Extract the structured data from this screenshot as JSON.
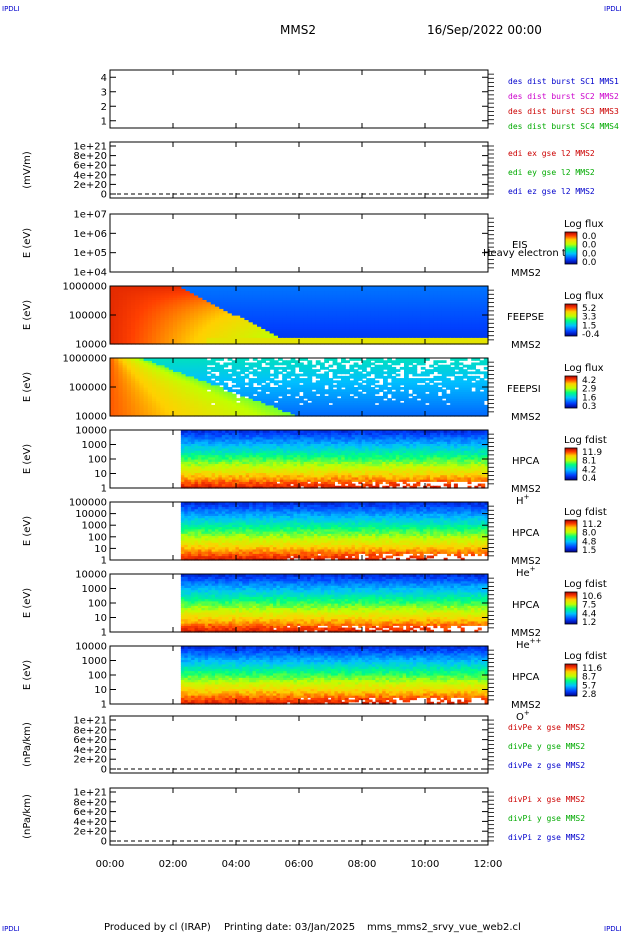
{
  "header": {
    "corner_left_top": "IPDLI",
    "corner_right_top": "IPDLI",
    "corner_left_bottom": "IPDLI",
    "corner_right_bottom": "IPDLI",
    "spacecraft": "MMS2",
    "date": "16/Sep/2022 00:00"
  },
  "footer": {
    "produced": "Produced by cl (IRAP)",
    "printing": "Printing date: 03/Jan/2025",
    "file": "mms_mms2_srvy_vue_web2.cl"
  },
  "colors": {
    "blue": "#0000cc",
    "magenta": "#cc00cc",
    "red": "#cc0000",
    "green": "#00aa00"
  },
  "chart_data": [
    {
      "id": "burst",
      "type": "line",
      "ylabel": "",
      "ylim": [
        0.5,
        4.5
      ],
      "yticks": [
        "1",
        "2",
        "3",
        "4"
      ],
      "legend": [
        "des dist burst SC1 MMS1",
        "des dist burst SC2 MMS2",
        "des dist burst SC3 MMS3",
        "des dist burst SC4 MMS4"
      ],
      "legend_colors": [
        "#0000cc",
        "#cc00cc",
        "#cc0000",
        "#00aa00"
      ]
    },
    {
      "id": "edi",
      "type": "line",
      "ylabel": "(mV/m)",
      "yticks": [
        "0",
        "2e+20",
        "4e+20",
        "6e+20",
        "8e+20",
        "1e+21"
      ],
      "legend": [
        "edi ex gse l2 MMS2",
        "edi ey gse l2 MMS2",
        "edi ez gse l2 MMS2"
      ],
      "legend_colors": [
        "#cc0000",
        "#00aa00",
        "#0000cc"
      ]
    },
    {
      "id": "eis",
      "type": "heatmap",
      "ylabel": "E (eV)",
      "yscale": "log",
      "yticks": [
        "1e+04",
        "1e+05",
        "1e+06",
        "1e+07"
      ],
      "labels": [
        "EIS",
        "MMS2"
      ],
      "overlay": "Heavy electron to",
      "colorbar_title": "Log flux",
      "colorbar_ticks": [
        "0.0",
        "0.0",
        "0.0",
        "0.0"
      ]
    },
    {
      "id": "feepse",
      "type": "heatmap",
      "ylabel": "E (eV)",
      "yscale": "log",
      "yticks": [
        "10000",
        "100000",
        "1000000"
      ],
      "labels": [
        "FEEPSE",
        "MMS2"
      ],
      "colorbar_title": "Log flux",
      "colorbar_ticks": [
        "5.2",
        "3.3",
        "1.5",
        "-0.4"
      ]
    },
    {
      "id": "feepsi",
      "type": "heatmap",
      "ylabel": "E (eV)",
      "yscale": "log",
      "yticks": [
        "10000",
        "100000",
        "1000000"
      ],
      "labels": [
        "FEEPSI",
        "MMS2"
      ],
      "colorbar_title": "Log flux",
      "colorbar_ticks": [
        "4.2",
        "2.9",
        "1.6",
        "0.3"
      ]
    },
    {
      "id": "hpca_h",
      "type": "heatmap",
      "ylabel": "E (eV)",
      "yscale": "log",
      "yticks": [
        "1",
        "10",
        "100",
        "1000",
        "10000"
      ],
      "labels": [
        "HPCA",
        "MMS2"
      ],
      "species": "H",
      "species_sup": "+",
      "colorbar_title": "Log fdist",
      "colorbar_ticks": [
        "11.9",
        "8.1",
        "4.2",
        "0.4"
      ]
    },
    {
      "id": "hpca_he",
      "type": "heatmap",
      "ylabel": "E (eV)",
      "yscale": "log",
      "yticks": [
        "1",
        "10",
        "100",
        "1000",
        "10000",
        "100000"
      ],
      "labels": [
        "HPCA",
        "MMS2"
      ],
      "species": "He",
      "species_sup": "+",
      "colorbar_title": "Log fdist",
      "colorbar_ticks": [
        "11.2",
        "8.0",
        "4.8",
        "1.5"
      ]
    },
    {
      "id": "hpca_hepp",
      "type": "heatmap",
      "ylabel": "E (eV)",
      "yscale": "log",
      "yticks": [
        "1",
        "10",
        "100",
        "1000",
        "10000"
      ],
      "labels": [
        "HPCA",
        "MMS2"
      ],
      "species": "He",
      "species_sup": "++",
      "colorbar_title": "Log fdist",
      "colorbar_ticks": [
        "10.6",
        "7.5",
        "4.4",
        "1.2"
      ]
    },
    {
      "id": "hpca_o",
      "type": "heatmap",
      "ylabel": "E (eV)",
      "yscale": "log",
      "yticks": [
        "1",
        "10",
        "100",
        "1000",
        "10000"
      ],
      "labels": [
        "HPCA",
        "MMS2"
      ],
      "species": "O",
      "species_sup": "+",
      "colorbar_title": "Log fdist",
      "colorbar_ticks": [
        "11.6",
        "8.7",
        "5.7",
        "2.8"
      ]
    },
    {
      "id": "divpe",
      "type": "line",
      "ylabel": "(nPa/km)",
      "yticks": [
        "0",
        "2e+20",
        "4e+20",
        "6e+20",
        "8e+20",
        "1e+21"
      ],
      "legend": [
        "divPe x gse MMS2",
        "divPe y gse MMS2",
        "divPe z gse MMS2"
      ],
      "legend_colors": [
        "#cc0000",
        "#00aa00",
        "#0000cc"
      ]
    },
    {
      "id": "divpi",
      "type": "line",
      "ylabel": "(nPa/km)",
      "yticks": [
        "0",
        "2e+20",
        "4e+20",
        "6e+20",
        "8e+20",
        "1e+21"
      ],
      "legend": [
        "divPi x gse MMS2",
        "divPi y gse MMS2",
        "divPi z gse MMS2"
      ],
      "legend_colors": [
        "#cc0000",
        "#00aa00",
        "#0000cc"
      ]
    }
  ],
  "xaxis": {
    "ticks": [
      "00:00",
      "02:00",
      "04:00",
      "06:00",
      "08:00",
      "10:00",
      "12:00"
    ],
    "xlim": [
      "00:00",
      "12:00"
    ]
  },
  "data_coverage": {
    "feeps_start": "00:00",
    "hpca_start": "02:15",
    "end": "12:00"
  }
}
